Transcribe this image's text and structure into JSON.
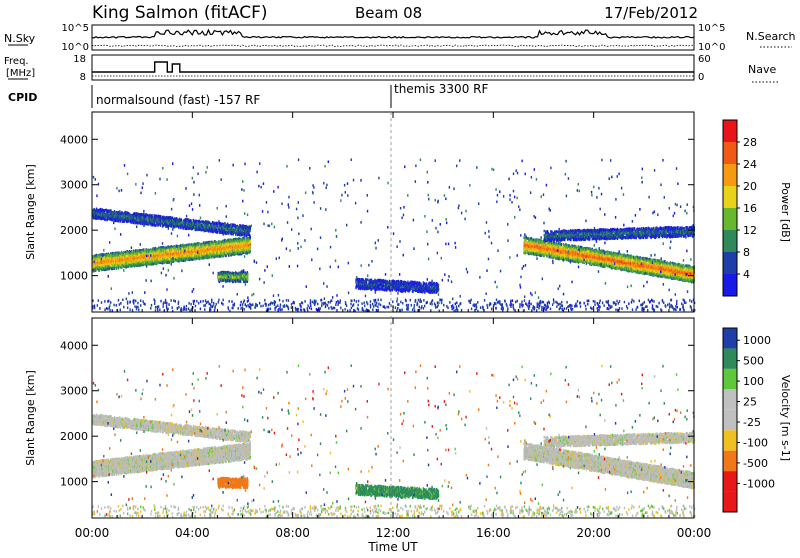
{
  "header": {
    "station": "King Salmon (fitACF)",
    "beam": "Beam 08",
    "date": "17/Feb/2012"
  },
  "top_panels": {
    "nsky_label": "N.Sky",
    "nsearch_label": "N.Search",
    "nsky_ticks": [
      "10^5",
      "10^0"
    ],
    "nsearch_ticks": [
      "10^5",
      "10^0"
    ],
    "freq_label": "Freq.",
    "freq_unit": "[MHz]",
    "freq_ticks": [
      "18",
      "8"
    ],
    "nave_label": "Nave",
    "nave_ticks": [
      "60",
      "0"
    ],
    "cpid_label": "CPID",
    "cpid_segments": [
      {
        "label": "normalsound (fast) -157 RF",
        "start_hour": 0,
        "end_hour": 12
      },
      {
        "label": "themis 3300 RF",
        "start_hour": 12,
        "end_hour": 24
      }
    ]
  },
  "panels": [
    {
      "id": "power",
      "ylabel": "Slant Range [km]",
      "colorbar_label": "Power [dB]",
      "colorbar_ticks": [
        "28",
        "24",
        "20",
        "16",
        "12",
        "8",
        "4"
      ],
      "colorbar_colors": [
        "#e8141a",
        "#f05a16",
        "#f59a12",
        "#e8d21a",
        "#68b82e",
        "#2e8a5a",
        "#1f3fa8",
        "#1919e8"
      ]
    },
    {
      "id": "velocity",
      "ylabel": "Slant Range [km]",
      "colorbar_label": "Velocity [m s-1]",
      "colorbar_ticks": [
        "1000",
        "500",
        "100",
        "25",
        "-25",
        "-100",
        "-500",
        "-1000"
      ],
      "colorbar_colors": [
        "#1f3fa8",
        "#2e8a5a",
        "#5cc83a",
        "#c0c0c0",
        "#c0c0c0",
        "#f0c020",
        "#f07818",
        "#e81818"
      ]
    }
  ],
  "xaxis": {
    "label": "Time UT",
    "ticks": [
      "00:00",
      "04:00",
      "08:00",
      "12:00",
      "16:00",
      "20:00",
      "00:00"
    ]
  },
  "chart_data": {
    "type": "heatmap",
    "title": "King Salmon (fitACF)",
    "subtitle": "Beam 08",
    "date": "17/Feb/2012",
    "xlabel": "Time UT",
    "ylabel": "Slant Range [km]",
    "xlim": [
      0,
      24
    ],
    "ylim": [
      200,
      4600
    ],
    "yticks": [
      1000,
      2000,
      3000,
      4000
    ],
    "features": [
      {
        "name": "early_main_band",
        "t_start": 0,
        "t_end": 6.3,
        "range_start_km": 1300,
        "range_end_km": 1700,
        "power_db": 22,
        "velocity": 0
      },
      {
        "name": "early_upper_band",
        "t_start": 0,
        "t_end": 6.3,
        "range_start_km": 2400,
        "range_end_km": 2000,
        "power_db": 8,
        "velocity": 0
      },
      {
        "name": "midday_echo",
        "t_start": 10.5,
        "t_end": 13.8,
        "range_start_km": 850,
        "range_end_km": 750,
        "power_db": 6,
        "velocity": 120
      },
      {
        "name": "late_main_band",
        "t_start": 17.2,
        "t_end": 24,
        "range_start_km": 1700,
        "range_end_km": 1050,
        "power_db": 24,
        "velocity": 0
      },
      {
        "name": "late_upper_band",
        "t_start": 18,
        "t_end": 24,
        "range_start_km": 1900,
        "range_end_km": 2000,
        "power_db": 8,
        "velocity": 0
      },
      {
        "name": "orange_blob",
        "t_start": 5.0,
        "t_end": 6.2,
        "range_start_km": 1000,
        "range_end_km": 1000,
        "power_db": 14,
        "velocity": -400
      }
    ]
  }
}
